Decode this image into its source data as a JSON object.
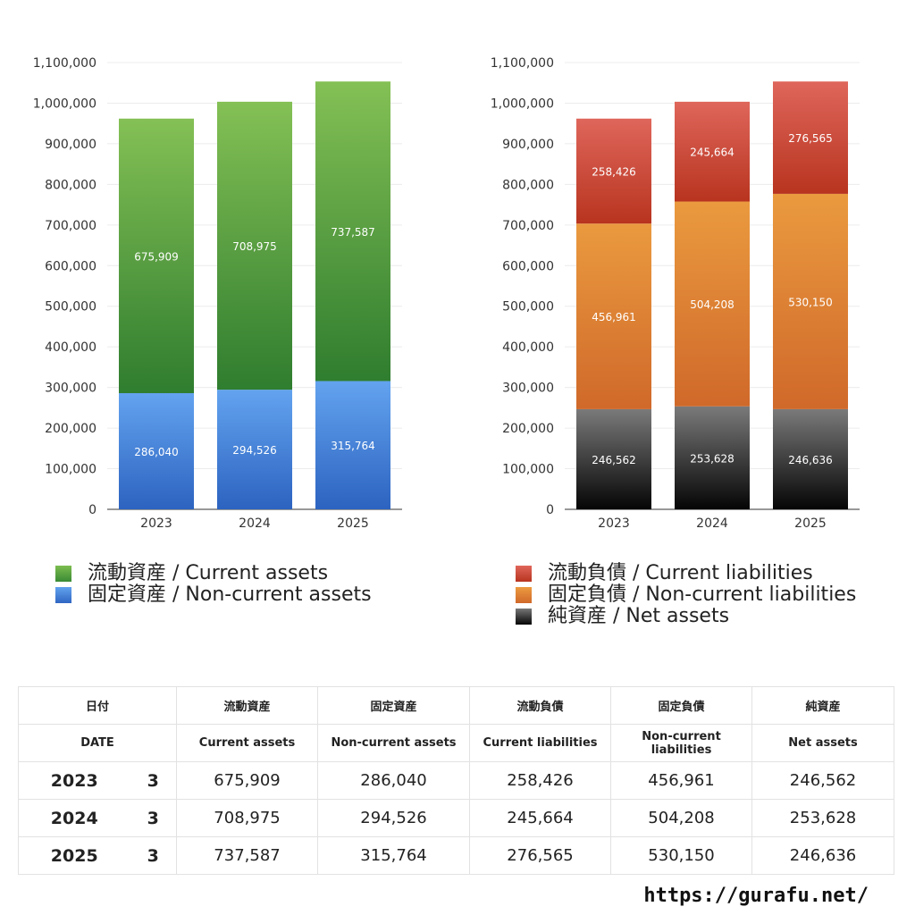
{
  "chart_data": [
    {
      "type": "bar",
      "stacked": true,
      "categories": [
        "2023",
        "2024",
        "2025"
      ],
      "ylim": [
        0,
        1100000
      ],
      "yticks": [
        "0",
        "100,000",
        "200,000",
        "300,000",
        "400,000",
        "500,000",
        "600,000",
        "700,000",
        "800,000",
        "900,000",
        "1,000,000",
        "1,100,000"
      ],
      "grid": true,
      "series": [
        {
          "name": "固定資産 / Non-current assets",
          "values": [
            286040,
            294526,
            315764
          ],
          "labels": [
            "286,040",
            "294,526",
            "315,764"
          ],
          "color_top": "#63a3ef",
          "color_bottom": "#2c63c0"
        },
        {
          "name": "流動資産 / Current assets",
          "values": [
            675909,
            708975,
            737587
          ],
          "labels": [
            "675,909",
            "708,975",
            "737,587"
          ],
          "color_top": "#84c055",
          "color_bottom": "#2f7d2f"
        }
      ]
    },
    {
      "type": "bar",
      "stacked": true,
      "categories": [
        "2023",
        "2024",
        "2025"
      ],
      "ylim": [
        0,
        1100000
      ],
      "yticks": [
        "0",
        "100,000",
        "200,000",
        "300,000",
        "400,000",
        "500,000",
        "600,000",
        "700,000",
        "800,000",
        "900,000",
        "1,000,000",
        "1,100,000"
      ],
      "grid": true,
      "series": [
        {
          "name": "純資産 / Net assets",
          "values": [
            246562,
            253628,
            246636
          ],
          "labels": [
            "246,562",
            "253,628",
            "246,636"
          ],
          "color_top": "#7a7a7a",
          "color_bottom": "#050505"
        },
        {
          "name": "固定負債 / Non-current liabilities",
          "values": [
            456961,
            504208,
            530150
          ],
          "labels": [
            "456,961",
            "504,208",
            "530,150"
          ],
          "color_top": "#ea9a3f",
          "color_bottom": "#d0692a"
        },
        {
          "name": "流動負債 / Current liabilities",
          "values": [
            258426,
            245664,
            276565
          ],
          "labels": [
            "258,426",
            "245,664",
            "276,565"
          ],
          "color_top": "#df665b",
          "color_bottom": "#b8341f"
        }
      ]
    }
  ],
  "legend_left": [
    {
      "label": "流動資産 / Current assets",
      "color": "#5aa43f"
    },
    {
      "label": "固定資産 / Non-current assets",
      "color": "#3f7ed8"
    }
  ],
  "legend_right": [
    {
      "label": "流動負債 / Current liabilities",
      "color": "#d0473a"
    },
    {
      "label": "固定負債 / Non-current liabilities",
      "color": "#e0883a"
    },
    {
      "label": "純資産 / Net assets",
      "color": "#333333"
    }
  ],
  "table": {
    "header_jp": [
      "日付",
      "流動資産",
      "固定資産",
      "流動負債",
      "固定負債",
      "純資産"
    ],
    "header_en": [
      "DATE",
      "Current assets",
      "Non-current assets",
      "Current liabilities",
      "Non-current liabilities",
      "Net assets"
    ],
    "rows": [
      {
        "year": "2023",
        "month": "3",
        "values": [
          "675,909",
          "286,040",
          "258,426",
          "456,961",
          "246,562"
        ]
      },
      {
        "year": "2024",
        "month": "3",
        "values": [
          "708,975",
          "294,526",
          "245,664",
          "504,208",
          "253,628"
        ]
      },
      {
        "year": "2025",
        "month": "3",
        "values": [
          "737,587",
          "315,764",
          "276,565",
          "530,150",
          "246,636"
        ]
      }
    ]
  },
  "site_url": "https://gurafu.net/"
}
